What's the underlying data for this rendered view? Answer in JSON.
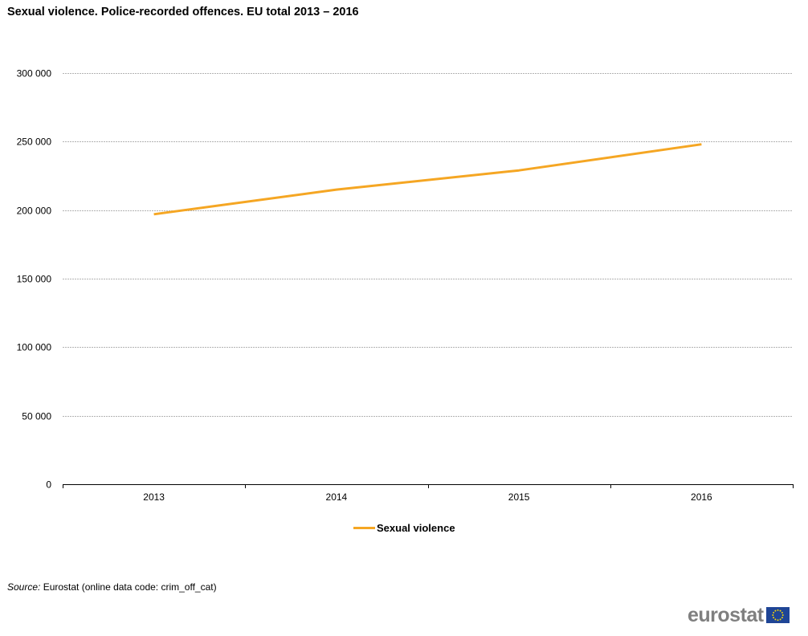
{
  "header": {
    "title": "Sexual violence. Police-recorded offences. EU total 2013 – 2016"
  },
  "chart_data": {
    "type": "line",
    "title": "Sexual violence. Police-recorded offences. EU total 2013 – 2016",
    "categories": [
      "2013",
      "2014",
      "2015",
      "2016"
    ],
    "series": [
      {
        "name": "Sexual violence",
        "values": [
          197000,
          215000,
          229000,
          248000
        ],
        "color": "#f5a623"
      }
    ],
    "y_ticks": [
      0,
      50000,
      100000,
      150000,
      200000,
      250000,
      300000
    ],
    "y_tick_labels": [
      "0",
      "50 000",
      "100 000",
      "150 000",
      "200 000",
      "250 000",
      "300 000"
    ],
    "ylim": [
      0,
      300000
    ],
    "grid": "horizontal dashed",
    "legend_position": "bottom-center"
  },
  "footer": {
    "source_label": "Source:",
    "source_text": "Eurostat (online data code: crim_off_cat)"
  },
  "logo": {
    "text": "eurostat",
    "flag_color": "#1f4596",
    "star_color": "#ffdd00"
  }
}
